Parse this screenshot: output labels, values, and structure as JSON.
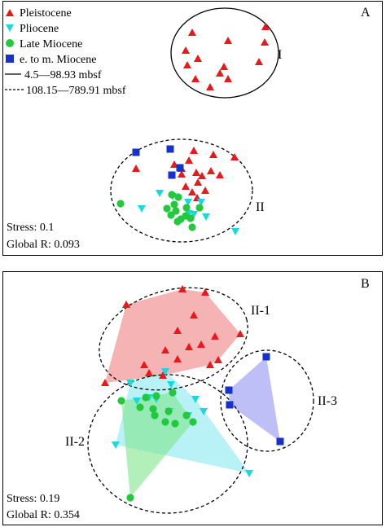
{
  "chart_data": [
    {
      "type": "scatter",
      "panel_label": "A",
      "stress": "Stress: 0.1",
      "global_r": "Global R: 0.093",
      "legend": [
        {
          "label": "Pleistocene",
          "marker": "triangle-up",
          "color": "#e8191d"
        },
        {
          "label": "Pliocene",
          "marker": "triangle-down",
          "color": "#19d8e0"
        },
        {
          "label": "Late Miocene",
          "marker": "circle",
          "color": "#22c93c"
        },
        {
          "label": "e. to m. Miocene",
          "marker": "square",
          "color": "#1632c8"
        },
        {
          "label": "4.5—98.93 mbsf",
          "marker": "solid-line",
          "color": "#000000"
        },
        {
          "label": "108.15—789.91 mbsf",
          "marker": "dashed-line",
          "color": "#000000"
        }
      ],
      "clusters": [
        {
          "label": "I",
          "style": "solid"
        },
        {
          "label": "II",
          "style": "dashed"
        }
      ],
      "series": [
        {
          "name": "Pleistocene",
          "points": [
            [
              236,
              40
            ],
            [
              280,
              50
            ],
            [
              326,
              33
            ],
            [
              228,
              62
            ],
            [
              243,
              72
            ],
            [
              325,
              52
            ],
            [
              230,
              80
            ],
            [
              275,
              82
            ],
            [
              270,
              90
            ],
            [
              318,
              76
            ],
            [
              240,
              97
            ],
            [
              280,
              97
            ],
            [
              258,
              107
            ],
            [
              167,
              207
            ],
            [
              238,
              185
            ],
            [
              232,
              197
            ],
            [
              262,
              190
            ],
            [
              288,
              193
            ],
            [
              214,
              202
            ],
            [
              223,
              207
            ],
            [
              223,
              214
            ],
            [
              241,
              212
            ],
            [
              248,
              216
            ],
            [
              259,
              210
            ],
            [
              270,
              215
            ],
            [
              243,
              224
            ],
            [
              228,
              229
            ],
            [
              236,
              236
            ],
            [
              252,
              234
            ],
            [
              242,
              243
            ]
          ]
        },
        {
          "name": "Pliocene",
          "points": [
            [
              196,
              237
            ],
            [
              212,
              241
            ],
            [
              231,
              248
            ],
            [
              247,
              248
            ],
            [
              174,
              256
            ],
            [
              232,
              262
            ],
            [
              253,
              266
            ],
            [
              289,
              284
            ],
            [
              238,
              263
            ]
          ]
        },
        {
          "name": "Late Miocene",
          "points": [
            [
              211,
              239
            ],
            [
              219,
              242
            ],
            [
              214,
              251
            ],
            [
              229,
              255
            ],
            [
              245,
              255
            ],
            [
              148,
              250
            ],
            [
              205,
              256
            ],
            [
              216,
              259
            ],
            [
              210,
              264
            ],
            [
              222,
              269
            ],
            [
              228,
              265
            ],
            [
              218,
              272
            ],
            [
              236,
              279
            ],
            [
              234,
              268
            ]
          ]
        },
        {
          "name": "e. to m. Miocene",
          "points": [
            [
              167,
              187
            ],
            [
              209,
              183
            ],
            [
              211,
              215
            ],
            [
              221,
              206
            ]
          ]
        }
      ]
    },
    {
      "type": "scatter",
      "panel_label": "B",
      "stress": "Stress: 0.19",
      "global_r": "Global R: 0.354",
      "clusters": [
        {
          "label": "II-1",
          "style": "dashed"
        },
        {
          "label": "II-2",
          "style": "dashed"
        },
        {
          "label": "II-3",
          "style": "dashed"
        }
      ],
      "series": [
        {
          "name": "Pleistocene",
          "points": [
            [
              155,
              374
            ],
            [
              224,
              355
            ],
            [
              252,
              359
            ],
            [
              238,
              387
            ],
            [
              218,
              406
            ],
            [
              264,
              413
            ],
            [
              295,
              410
            ],
            [
              232,
              426
            ],
            [
              247,
              423
            ],
            [
              203,
              430
            ],
            [
              218,
              441
            ],
            [
              268,
              442
            ],
            [
              258,
              448
            ],
            [
              177,
              448
            ],
            [
              129,
              470
            ],
            [
              183,
              458
            ],
            [
              200,
              461
            ]
          ]
        },
        {
          "name": "Pliocene",
          "points": [
            [
              203,
              456
            ],
            [
              210,
              472
            ],
            [
              160,
              470
            ],
            [
              183,
              488
            ],
            [
              192,
              490
            ],
            [
              240,
              490
            ],
            [
              250,
              505
            ],
            [
              208,
              505
            ],
            [
              142,
              546
            ],
            [
              306,
              581
            ],
            [
              231,
              510
            ],
            [
              168,
              492
            ]
          ]
        },
        {
          "name": "Late Miocene",
          "points": [
            [
              149,
              492
            ],
            [
              179,
              488
            ],
            [
              192,
              486
            ],
            [
              212,
              482
            ],
            [
              172,
              500
            ],
            [
              188,
              502
            ],
            [
              207,
              505
            ],
            [
              215,
              520
            ],
            [
              229,
              510
            ],
            [
              237,
              518
            ],
            [
              190,
              510
            ],
            [
              203,
              518
            ],
            [
              160,
              611
            ]
          ]
        },
        {
          "name": "e. to m. Miocene",
          "points": [
            [
              327,
              438
            ],
            [
              281,
              479
            ],
            [
              282,
              497
            ],
            [
              344,
              542
            ]
          ]
        }
      ]
    }
  ]
}
